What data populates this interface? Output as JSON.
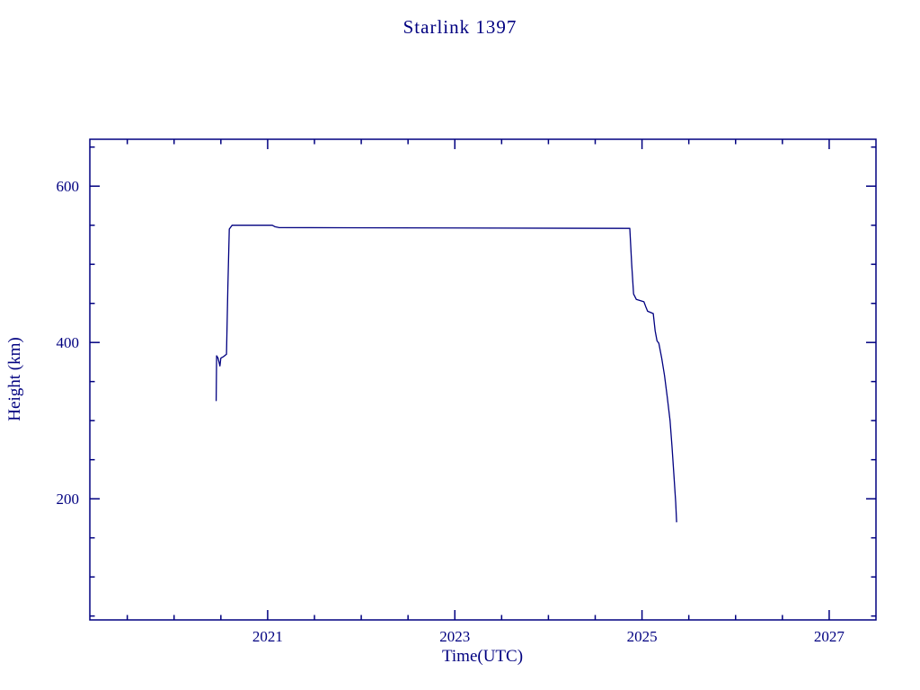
{
  "page": {
    "background": "#ffffff"
  },
  "chart_data": {
    "type": "line",
    "title": "Starlink 1397",
    "xlabel": "Time(UTC)",
    "ylabel": "Height (km)",
    "line_color": "#000080",
    "frame_color": "#000080",
    "grid": false,
    "legend": "none",
    "xlim": [
      2019.1,
      2027.5
    ],
    "ylim": [
      45,
      660
    ],
    "x_major_ticks": [
      {
        "value": 2021,
        "label": "2021"
      },
      {
        "value": 2023,
        "label": "2023"
      },
      {
        "value": 2025,
        "label": "2025"
      },
      {
        "value": 2027,
        "label": "2027"
      }
    ],
    "x_minor_step": 0.5,
    "y_major_ticks": [
      {
        "value": 200,
        "label": "200"
      },
      {
        "value": 400,
        "label": "400"
      },
      {
        "value": 600,
        "label": "600"
      }
    ],
    "y_minor_step": 50,
    "series": [
      {
        "name": "orbital-height",
        "points": [
          [
            2020.45,
            325
          ],
          [
            2020.455,
            383
          ],
          [
            2020.47,
            380
          ],
          [
            2020.49,
            370
          ],
          [
            2020.5,
            380
          ],
          [
            2020.53,
            382
          ],
          [
            2020.56,
            385
          ],
          [
            2020.575,
            470
          ],
          [
            2020.59,
            545
          ],
          [
            2020.62,
            550
          ],
          [
            2021.05,
            550
          ],
          [
            2021.08,
            548
          ],
          [
            2021.12,
            547
          ],
          [
            2024.87,
            546
          ],
          [
            2024.89,
            500
          ],
          [
            2024.91,
            462
          ],
          [
            2024.94,
            455
          ],
          [
            2025.02,
            452
          ],
          [
            2025.04,
            446
          ],
          [
            2025.06,
            440
          ],
          [
            2025.12,
            437
          ],
          [
            2025.14,
            415
          ],
          [
            2025.16,
            402
          ],
          [
            2025.18,
            399
          ],
          [
            2025.21,
            380
          ],
          [
            2025.24,
            358
          ],
          [
            2025.27,
            330
          ],
          [
            2025.3,
            300
          ],
          [
            2025.32,
            268
          ],
          [
            2025.34,
            232
          ],
          [
            2025.36,
            195
          ],
          [
            2025.37,
            170
          ]
        ]
      }
    ]
  }
}
